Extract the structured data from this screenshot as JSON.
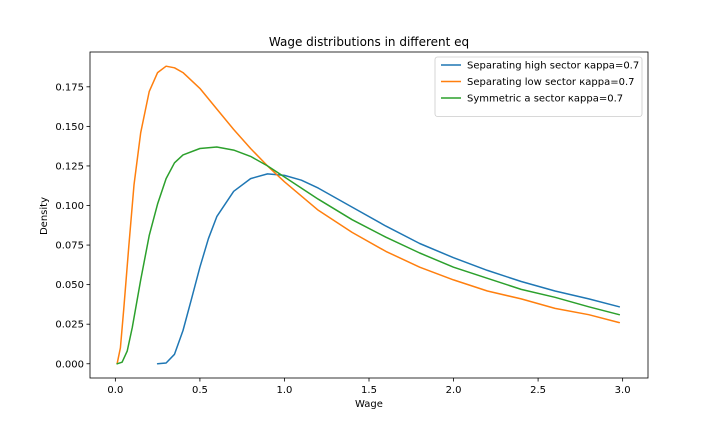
{
  "chart_data": {
    "type": "line",
    "title": "Wage distributions in different eq",
    "xlabel": "Wage",
    "ylabel": "Density",
    "xlim": [
      -0.15,
      3.15
    ],
    "ylim": [
      -0.009,
      0.197
    ],
    "xticks": [
      0.0,
      0.5,
      1.0,
      1.5,
      2.0,
      2.5,
      3.0
    ],
    "xtick_labels": [
      "0.0",
      "0.5",
      "1.0",
      "1.5",
      "2.0",
      "2.5",
      "3.0"
    ],
    "yticks": [
      0.0,
      0.025,
      0.05,
      0.075,
      0.1,
      0.125,
      0.15,
      0.175
    ],
    "ytick_labels": [
      "0.000",
      "0.025",
      "0.050",
      "0.075",
      "0.100",
      "0.125",
      "0.150",
      "0.175"
    ],
    "grid": false,
    "legend_position": "top-right",
    "series": [
      {
        "name": "Separating high sector kappa=0.7",
        "color": "#1f77b4",
        "points": [
          [
            0.25,
            0.0
          ],
          [
            0.3,
            0.0005
          ],
          [
            0.35,
            0.006
          ],
          [
            0.4,
            0.021
          ],
          [
            0.45,
            0.041
          ],
          [
            0.5,
            0.061
          ],
          [
            0.55,
            0.079
          ],
          [
            0.6,
            0.093
          ],
          [
            0.7,
            0.109
          ],
          [
            0.8,
            0.117
          ],
          [
            0.9,
            0.12
          ],
          [
            1.0,
            0.119
          ],
          [
            1.1,
            0.116
          ],
          [
            1.2,
            0.111
          ],
          [
            1.4,
            0.099
          ],
          [
            1.6,
            0.087
          ],
          [
            1.8,
            0.076
          ],
          [
            2.0,
            0.067
          ],
          [
            2.2,
            0.059
          ],
          [
            2.4,
            0.052
          ],
          [
            2.6,
            0.046
          ],
          [
            2.8,
            0.041
          ],
          [
            2.98,
            0.036
          ]
        ]
      },
      {
        "name": "Separating low sector kappa=0.7",
        "color": "#ff7f0e",
        "points": [
          [
            0.01,
            0.0
          ],
          [
            0.03,
            0.01
          ],
          [
            0.05,
            0.035
          ],
          [
            0.08,
            0.075
          ],
          [
            0.11,
            0.113
          ],
          [
            0.15,
            0.146
          ],
          [
            0.2,
            0.172
          ],
          [
            0.25,
            0.184
          ],
          [
            0.3,
            0.188
          ],
          [
            0.35,
            0.187
          ],
          [
            0.4,
            0.184
          ],
          [
            0.5,
            0.174
          ],
          [
            0.6,
            0.161
          ],
          [
            0.7,
            0.148
          ],
          [
            0.8,
            0.136
          ],
          [
            0.9,
            0.125
          ],
          [
            1.0,
            0.115
          ],
          [
            1.2,
            0.097
          ],
          [
            1.4,
            0.083
          ],
          [
            1.6,
            0.071
          ],
          [
            1.8,
            0.061
          ],
          [
            2.0,
            0.053
          ],
          [
            2.2,
            0.046
          ],
          [
            2.4,
            0.041
          ],
          [
            2.6,
            0.035
          ],
          [
            2.8,
            0.031
          ],
          [
            2.98,
            0.026
          ]
        ]
      },
      {
        "name": "Symmetric a sector kappa=0.7",
        "color": "#2ca02c",
        "points": [
          [
            0.01,
            0.0
          ],
          [
            0.04,
            0.001
          ],
          [
            0.07,
            0.008
          ],
          [
            0.1,
            0.023
          ],
          [
            0.15,
            0.053
          ],
          [
            0.2,
            0.081
          ],
          [
            0.25,
            0.101
          ],
          [
            0.3,
            0.117
          ],
          [
            0.35,
            0.127
          ],
          [
            0.4,
            0.132
          ],
          [
            0.5,
            0.136
          ],
          [
            0.6,
            0.137
          ],
          [
            0.7,
            0.135
          ],
          [
            0.8,
            0.131
          ],
          [
            0.9,
            0.125
          ],
          [
            1.0,
            0.118
          ],
          [
            1.2,
            0.104
          ],
          [
            1.4,
            0.091
          ],
          [
            1.6,
            0.08
          ],
          [
            1.8,
            0.07
          ],
          [
            2.0,
            0.061
          ],
          [
            2.2,
            0.054
          ],
          [
            2.4,
            0.047
          ],
          [
            2.6,
            0.042
          ],
          [
            2.8,
            0.036
          ],
          [
            2.98,
            0.031
          ]
        ]
      }
    ],
    "legend_labels": [
      "Separating high sector кappa=0.7",
      "Separating low sector кappa=0.7",
      "Symmetric a sector кappa=0.7"
    ],
    "spine_color": "#000000"
  }
}
